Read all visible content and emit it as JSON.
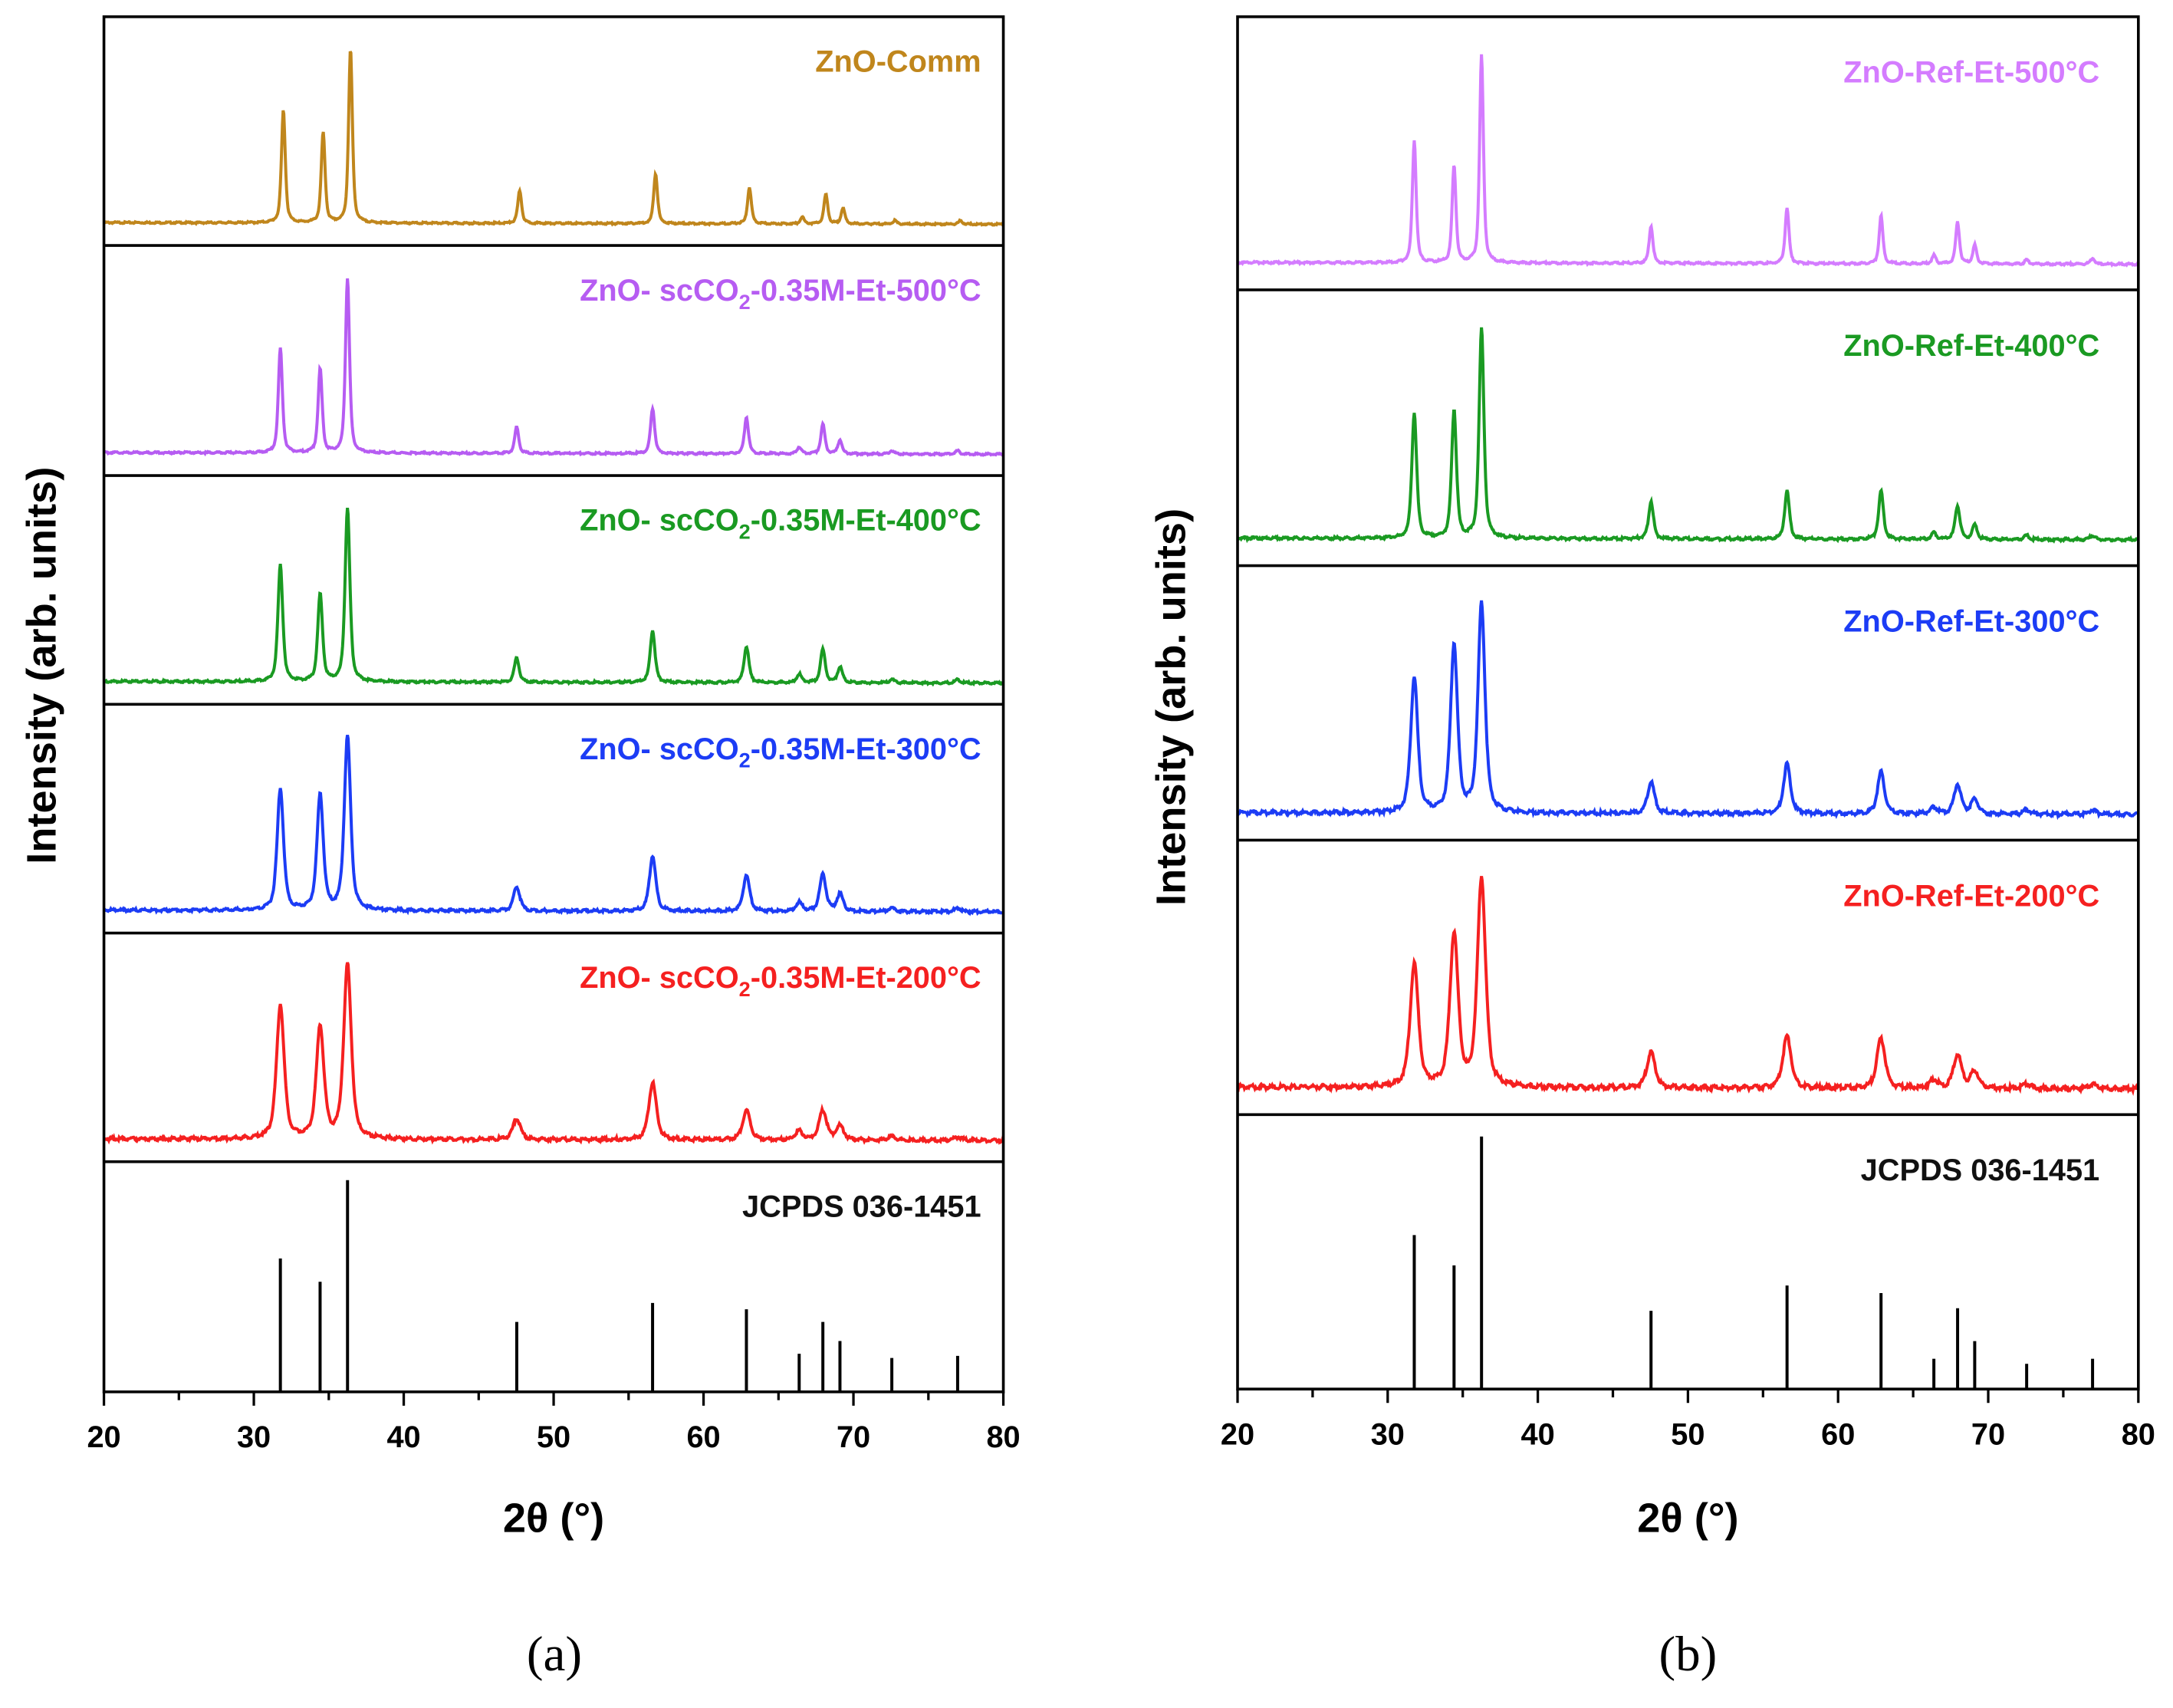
{
  "chart_data": [
    {
      "type": "line",
      "panel_label": "(a)",
      "xlabel": "2θ (°)",
      "ylabel": "Intensity (arb. units)",
      "xlim": [
        20,
        80
      ],
      "xticks": [
        20,
        30,
        40,
        50,
        60,
        70,
        80
      ],
      "grid": false,
      "reference": {
        "name": "JCPDS 036-1451",
        "positions": [
          31.77,
          34.42,
          36.25,
          47.54,
          56.6,
          62.86,
          66.38,
          67.96,
          69.1,
          72.56,
          76.95
        ],
        "intensities": [
          63,
          52,
          100,
          33,
          42,
          39,
          18,
          33,
          24,
          16,
          17
        ]
      },
      "series": [
        {
          "name_parts": [
            "ZnO-Comm",
            "",
            ""
          ],
          "color": "#c0861c",
          "fwhm": 0.3,
          "shift": 0.2,
          "intensities": [
            65,
            52,
            100,
            19,
            29,
            21,
            4,
            17,
            9,
            2,
            2
          ]
        },
        {
          "name_parts": [
            "ZnO- scCO",
            "2",
            "-0.35M-Et-500°C"
          ],
          "color": "#b65cf2",
          "fwhm": 0.32,
          "shift": 0,
          "intensities": [
            60,
            48,
            100,
            15,
            26,
            21,
            4,
            17,
            8,
            2,
            2
          ]
        },
        {
          "name_parts": [
            "ZnO- scCO",
            "2",
            "-0.35M-Et-400°C"
          ],
          "color": "#1a9a22",
          "fwhm": 0.38,
          "shift": 0,
          "intensities": [
            67,
            50,
            100,
            14,
            30,
            21,
            5,
            19,
            9,
            2,
            2
          ]
        },
        {
          "name_parts": [
            "ZnO- scCO",
            "2",
            "-0.35M-Et-300°C"
          ],
          "color": "#1c3cf5",
          "fwhm": 0.5,
          "shift": 0,
          "intensities": [
            70,
            66,
            100,
            14,
            32,
            21,
            5,
            21,
            10,
            2,
            2
          ]
        },
        {
          "name_parts": [
            "ZnO- scCO",
            "2",
            "-0.35M-Et-200°C"
          ],
          "color": "#f52020",
          "fwhm": 0.6,
          "shift": 0,
          "intensities": [
            77,
            64,
            100,
            12,
            33,
            17,
            5,
            17,
            8,
            2,
            2
          ]
        }
      ]
    },
    {
      "type": "line",
      "panel_label": "(b)",
      "xlabel": "2θ (°)",
      "ylabel": "Intensity (arb. units)",
      "xlim": [
        20,
        80
      ],
      "xticks": [
        20,
        30,
        40,
        50,
        60,
        70,
        80
      ],
      "grid": false,
      "reference": {
        "name": "JCPDS 036-1451",
        "positions": [
          31.77,
          34.42,
          36.25,
          47.54,
          56.6,
          62.86,
          66.38,
          67.96,
          69.1,
          72.56,
          76.95
        ],
        "intensities": [
          61,
          49,
          100,
          31,
          41,
          38,
          12,
          32,
          19,
          10,
          12
        ]
      },
      "series": [
        {
          "name_parts": [
            "ZnO-Ref-Et-500°C",
            "",
            ""
          ],
          "color": "#d47cff",
          "fwhm": 0.3,
          "shift": 0,
          "intensities": [
            59,
            47,
            100,
            18,
            27,
            23,
            4,
            20,
            9,
            2,
            3
          ]
        },
        {
          "name_parts": [
            "ZnO-Ref-Et-400°C",
            "",
            ""
          ],
          "color": "#1a9a22",
          "fwhm": 0.38,
          "shift": 0,
          "intensities": [
            60,
            61,
            100,
            18,
            23,
            23,
            3,
            16,
            7,
            2,
            2
          ]
        },
        {
          "name_parts": [
            "ZnO-Ref-Et-300°C",
            "",
            ""
          ],
          "color": "#1c3cf5",
          "fwhm": 0.55,
          "shift": 0,
          "intensities": [
            65,
            80,
            100,
            15,
            24,
            20,
            3,
            14,
            7,
            2,
            2
          ]
        },
        {
          "name_parts": [
            "ZnO-Ref-Et-200°C",
            "",
            ""
          ],
          "color": "#f52020",
          "fwhm": 0.65,
          "shift": 0,
          "intensities": [
            59,
            73,
            100,
            17,
            25,
            24,
            4,
            16,
            8,
            2,
            2
          ]
        }
      ]
    }
  ]
}
